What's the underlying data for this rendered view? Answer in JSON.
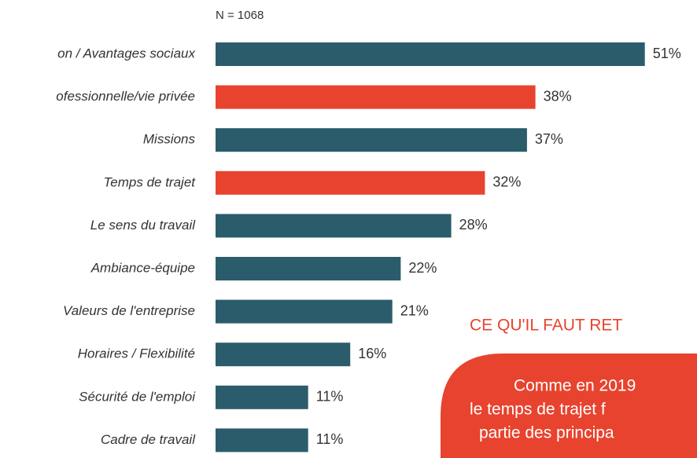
{
  "chart_data": {
    "type": "bar",
    "orientation": "horizontal",
    "subtitle": "N = 1068",
    "categories": [
      "on / Avantages sociaux",
      "ofessionnelle/vie privée",
      "Missions",
      "Temps de trajet",
      "Le sens du travail",
      "Ambiance-équipe",
      "Valeurs de l'entreprise",
      "Horaires / Flexibilité",
      "Sécurité de l'emploi",
      "Cadre de travail"
    ],
    "values": [
      51,
      38,
      37,
      32,
      28,
      22,
      21,
      16,
      11,
      11
    ],
    "value_labels": [
      "51%",
      "38%",
      "37%",
      "32%",
      "28%",
      "22%",
      "21%",
      "16%",
      "11%",
      "11%"
    ],
    "colors": [
      "#2b5c6b",
      "#e8432e",
      "#2b5c6b",
      "#e8432e",
      "#2b5c6b",
      "#2b5c6b",
      "#2b5c6b",
      "#2b5c6b",
      "#2b5c6b",
      "#2b5c6b"
    ],
    "annotation": {
      "title": "CE QU'IL FAUT RET",
      "lines": [
        "Comme en 2019",
        "le temps de trajet f",
        "partie des principa"
      ]
    }
  }
}
